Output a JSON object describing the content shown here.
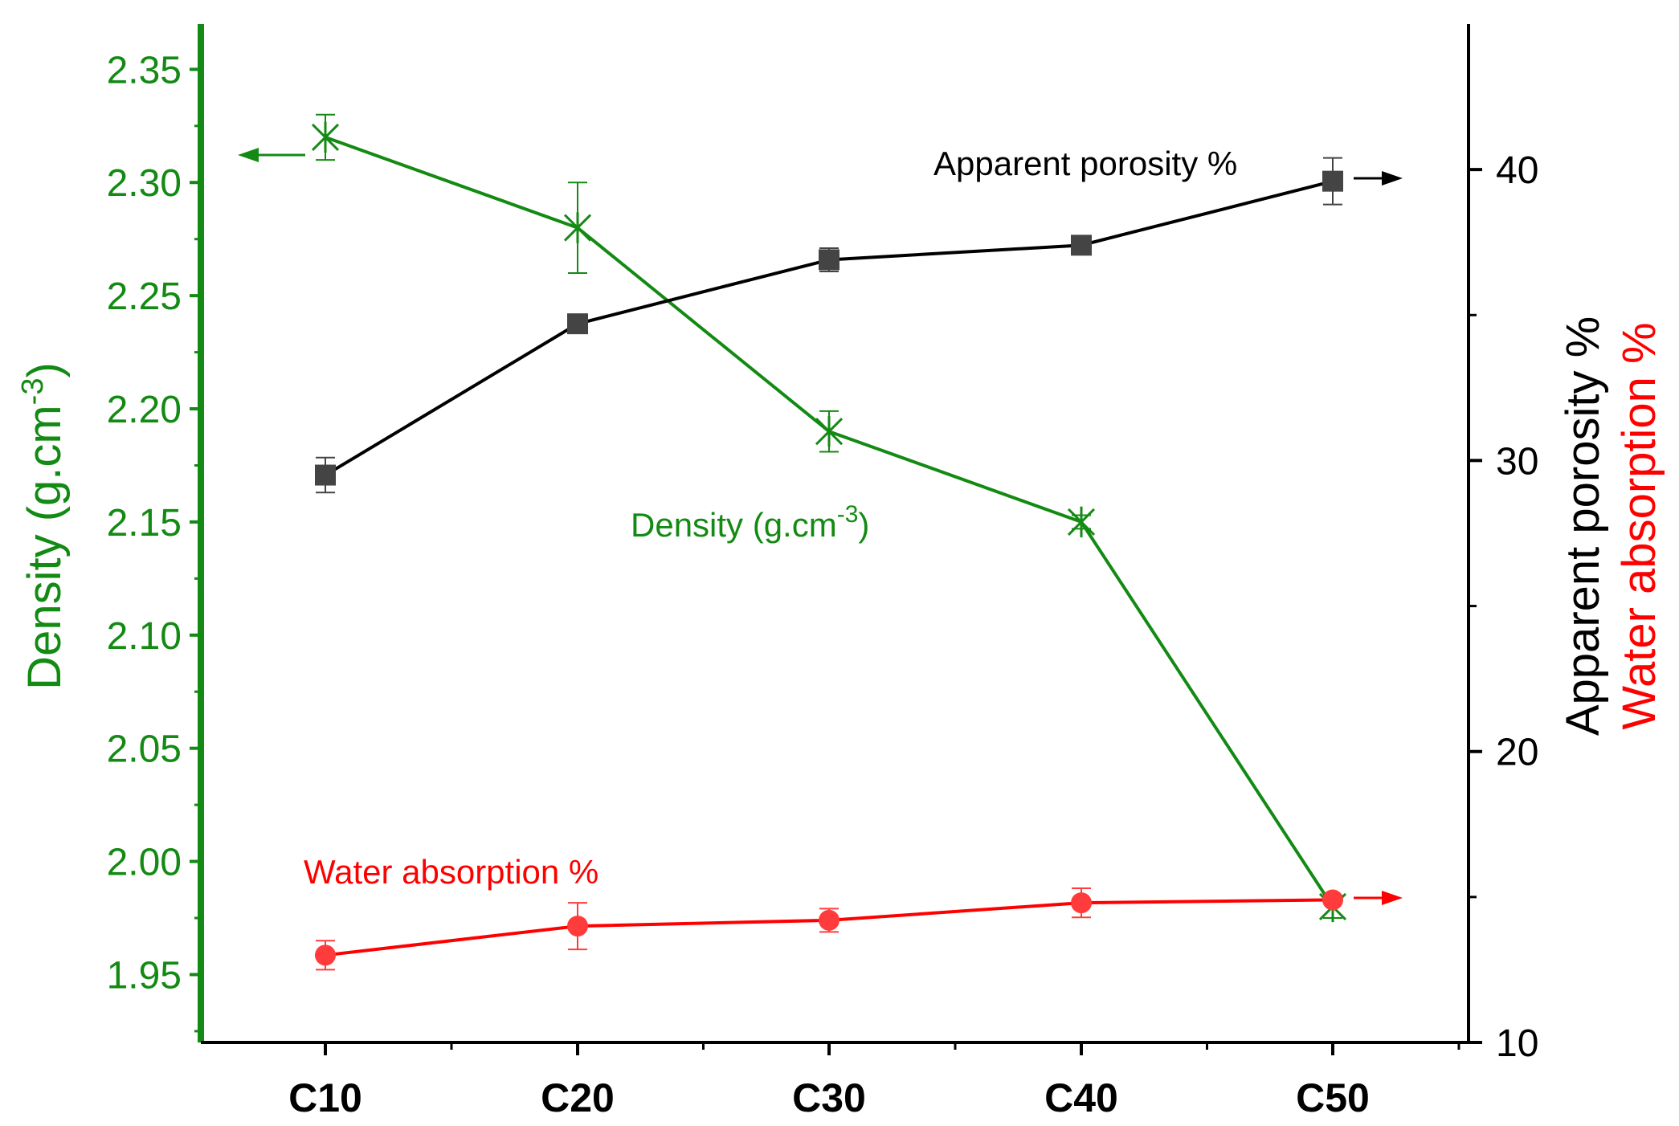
{
  "chart_data": {
    "type": "line",
    "categories": [
      "C10",
      "C20",
      "C30",
      "C40",
      "C50"
    ],
    "left_axis": {
      "label": "Density (g.cm",
      "label_sup": "-3",
      "label_end": ")",
      "min": 1.92,
      "max": 2.37,
      "ticks": [
        1.95,
        2.0,
        2.05,
        2.1,
        2.15,
        2.2,
        2.25,
        2.3,
        2.35
      ],
      "tick_labels": [
        "1.95",
        "2.00",
        "2.05",
        "2.10",
        "2.15",
        "2.20",
        "2.25",
        "2.30",
        "2.35"
      ],
      "color": "#138a13"
    },
    "right_axis": {
      "label_black": "Apparent porosity %",
      "label_red": "Water absorption %",
      "min": 10,
      "max": 45,
      "ticks": [
        10,
        20,
        30,
        40
      ],
      "tick_labels": [
        "10",
        "20",
        "30",
        "40"
      ],
      "color": "#000000"
    },
    "series": [
      {
        "name": "Density (g.cm-3)",
        "axis": "left",
        "color": "#138a13",
        "marker": "asterisk",
        "values": [
          2.32,
          2.28,
          2.19,
          2.15,
          1.98
        ],
        "errors": [
          0.01,
          0.02,
          0.009,
          0.003,
          0.005
        ]
      },
      {
        "name": "Apparent porosity %",
        "axis": "right",
        "color": "#000000",
        "marker_color": "#444444",
        "marker": "square",
        "values": [
          29.5,
          34.7,
          36.9,
          37.4,
          39.6
        ],
        "errors": [
          0.6,
          0.0,
          0.4,
          0.0,
          0.8
        ]
      },
      {
        "name": "Water absorption %",
        "axis": "right",
        "color": "#ff0000",
        "marker_color": "#ff3b3b",
        "marker": "circle",
        "values": [
          13.0,
          14.0,
          14.2,
          14.8,
          14.9
        ],
        "errors": [
          0.5,
          0.8,
          0.4,
          0.5,
          0.0
        ]
      }
    ],
    "annotations": {
      "density_label": "Density (g.cm",
      "density_sup": "-3",
      "density_end": ")",
      "porosity_label": "Apparent porosity %",
      "water_label": "Water absorption %"
    }
  }
}
